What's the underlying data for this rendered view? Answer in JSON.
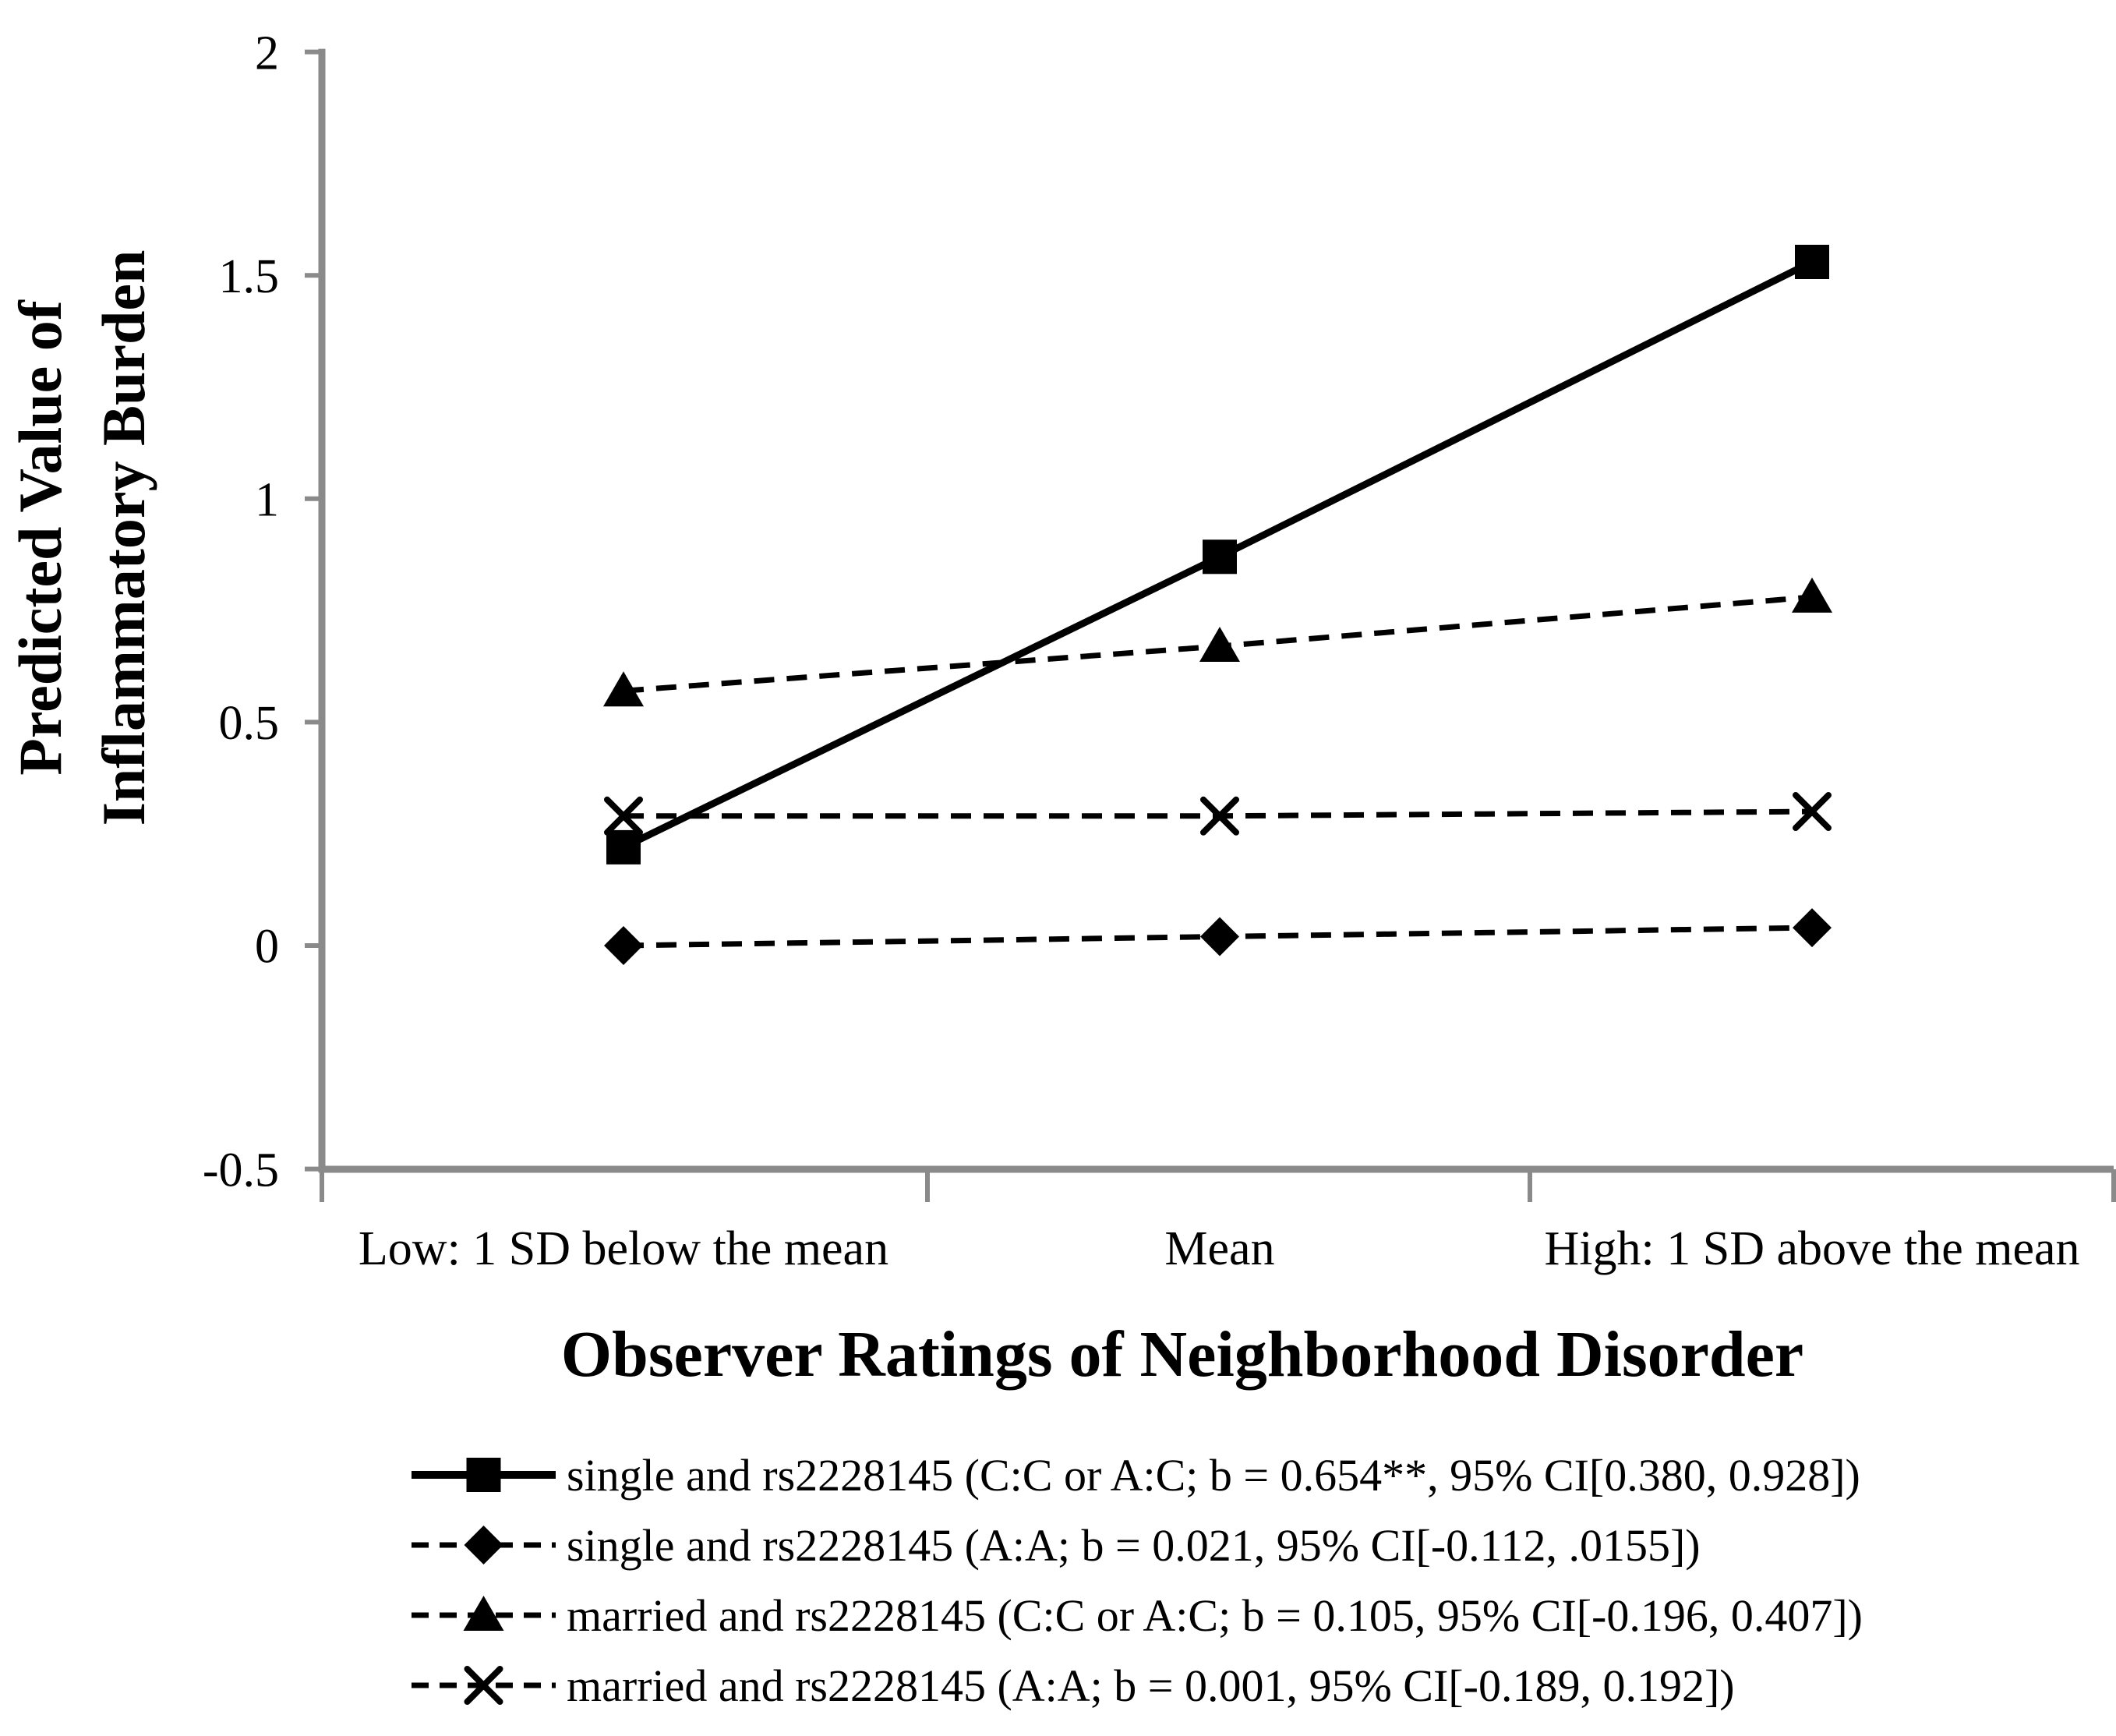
{
  "figure": {
    "y_axis_label_line1": "Predicted Value of",
    "y_axis_label_line2": "Inflammatory Burden",
    "x_axis_title": "Observer Ratings of Neighborhood Disorder"
  },
  "chart_data": {
    "type": "line",
    "title": "",
    "xlabel": "Observer Ratings of Neighborhood Disorder",
    "ylabel": "Predicted Value of Inflammatory Burden",
    "categories": [
      "Low: 1 SD below the mean",
      "Mean",
      "High: 1 SD above the mean"
    ],
    "y_ticks": [
      2,
      1.5,
      1,
      0.5,
      0,
      -0.5
    ],
    "y_tick_labels": [
      "2",
      "1.5",
      "1",
      "0.5",
      "0",
      "-0.5"
    ],
    "ylim": [
      -0.5,
      2
    ],
    "grid": false,
    "legend_position": "bottom-left",
    "axis_color": "#8a8a8a",
    "series_color": "#000000",
    "series": [
      {
        "name": "single and rs2228145 (C:C or A:C; b = 0.654**, 95% CI[0.380, 0.928])",
        "marker": "square",
        "line_style": "solid",
        "values": [
          0.22,
          0.87,
          1.53
        ]
      },
      {
        "name": "single and rs2228145 (A:A; b = 0.021, 95% CI[-0.112, .0155])",
        "marker": "diamond",
        "line_style": "dashed",
        "values": [
          0.0,
          0.02,
          0.04
        ]
      },
      {
        "name": "married and rs2228145 (C:C or A:C; b = 0.105, 95% CI[-0.196, 0.407])",
        "marker": "triangle",
        "line_style": "dashed",
        "values": [
          0.57,
          0.67,
          0.78
        ]
      },
      {
        "name": "married and rs2228145 (A:A; b = 0.001, 95% CI[-0.189, 0.192])",
        "marker": "x",
        "line_style": "dashed",
        "values": [
          0.29,
          0.29,
          0.3
        ]
      }
    ]
  }
}
